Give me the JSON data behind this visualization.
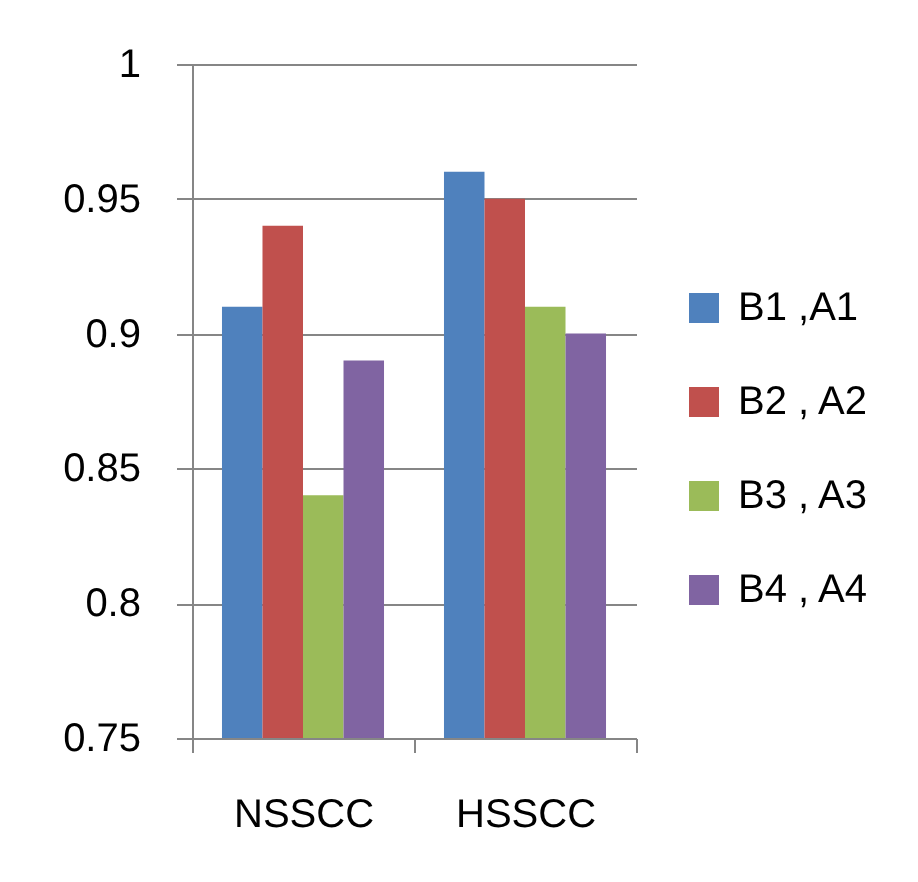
{
  "chart_data": {
    "type": "bar",
    "categories": [
      "NSSCC",
      "HSSCC"
    ],
    "series": [
      {
        "name": "B1 ,A1",
        "color": "#4f81bd",
        "values": [
          0.91,
          0.96
        ]
      },
      {
        "name": "B2 , A2",
        "color": "#c0504d",
        "values": [
          0.94,
          0.95
        ]
      },
      {
        "name": "B3 , A3",
        "color": "#9bbb59",
        "values": [
          0.84,
          0.91
        ]
      },
      {
        "name": "B4 , A4",
        "color": "#8064a2",
        "values": [
          0.89,
          0.9
        ]
      }
    ],
    "ylim": [
      0.75,
      1
    ],
    "yticks": [
      0.75,
      0.8,
      0.85,
      0.9,
      0.95,
      1
    ],
    "grid": "y",
    "legend": "right"
  }
}
